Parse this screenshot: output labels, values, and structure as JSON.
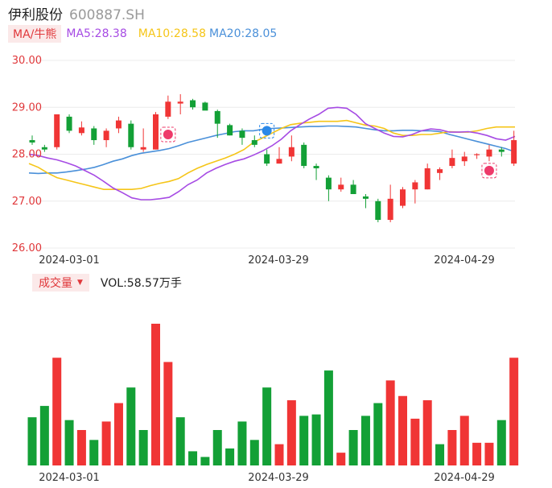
{
  "header": {
    "name": "伊利股份",
    "code": "600887.SH"
  },
  "ma_legend": {
    "button": "MA/牛熊",
    "ma5": "MA5:28.38",
    "ma10": "MA10:28.58",
    "ma20": "MA20:28.05"
  },
  "volume_legend": {
    "button": "成交量",
    "text": "VOL:58.57万手"
  },
  "colors": {
    "up": "#f03535",
    "down": "#13a036",
    "ma5": "#a64be4",
    "ma10": "#f5c518",
    "ma20": "#4a90d9",
    "axis_text": "#e0383b"
  },
  "chart_data": [
    {
      "type": "candlestick",
      "yticks": [
        "30.00",
        "29.00",
        "28.00",
        "27.00",
        "26.00"
      ],
      "ylim": [
        26.0,
        30.0
      ],
      "xticks": [
        "2024-03-01",
        "2024-03-29",
        "2024-04-29"
      ],
      "xtick_index": [
        2,
        19,
        34
      ],
      "candles": [
        {
          "o": 28.3,
          "h": 28.4,
          "l": 28.2,
          "c": 28.25
        },
        {
          "o": 28.15,
          "h": 28.2,
          "l": 28.05,
          "c": 28.1
        },
        {
          "o": 28.15,
          "h": 28.85,
          "l": 28.1,
          "c": 28.85
        },
        {
          "o": 28.8,
          "h": 28.85,
          "l": 28.45,
          "c": 28.5
        },
        {
          "o": 28.45,
          "h": 28.7,
          "l": 28.4,
          "c": 28.57
        },
        {
          "o": 28.55,
          "h": 28.6,
          "l": 28.2,
          "c": 28.3
        },
        {
          "o": 28.3,
          "h": 28.55,
          "l": 28.15,
          "c": 28.5
        },
        {
          "o": 28.55,
          "h": 28.8,
          "l": 28.45,
          "c": 28.72
        },
        {
          "o": 28.65,
          "h": 28.72,
          "l": 28.1,
          "c": 28.15
        },
        {
          "o": 28.1,
          "h": 28.55,
          "l": 28.05,
          "c": 28.15
        },
        {
          "o": 28.1,
          "h": 28.9,
          "l": 28.1,
          "c": 28.85
        },
        {
          "o": 28.8,
          "h": 29.25,
          "l": 28.75,
          "c": 29.12
        },
        {
          "o": 29.08,
          "h": 29.28,
          "l": 28.85,
          "c": 29.12
        },
        {
          "o": 29.15,
          "h": 29.18,
          "l": 28.95,
          "c": 29.0
        },
        {
          "o": 29.1,
          "h": 29.12,
          "l": 28.95,
          "c": 28.93
        },
        {
          "o": 28.92,
          "h": 28.95,
          "l": 28.35,
          "c": 28.65
        },
        {
          "o": 28.62,
          "h": 28.65,
          "l": 28.4,
          "c": 28.4
        },
        {
          "o": 28.5,
          "h": 28.55,
          "l": 28.2,
          "c": 28.35
        },
        {
          "o": 28.3,
          "h": 28.4,
          "l": 28.15,
          "c": 28.2
        },
        {
          "o": 28.0,
          "h": 28.1,
          "l": 27.75,
          "c": 27.8
        },
        {
          "o": 27.8,
          "h": 28.15,
          "l": 27.8,
          "c": 27.9
        },
        {
          "o": 27.95,
          "h": 28.4,
          "l": 27.85,
          "c": 28.15
        },
        {
          "o": 28.2,
          "h": 28.25,
          "l": 27.7,
          "c": 27.75
        },
        {
          "o": 27.75,
          "h": 27.8,
          "l": 27.45,
          "c": 27.7
        },
        {
          "o": 27.5,
          "h": 27.55,
          "l": 27.0,
          "c": 27.25
        },
        {
          "o": 27.25,
          "h": 27.5,
          "l": 27.2,
          "c": 27.35
        },
        {
          "o": 27.35,
          "h": 27.45,
          "l": 27.15,
          "c": 27.15
        },
        {
          "o": 27.1,
          "h": 27.15,
          "l": 26.85,
          "c": 27.05
        },
        {
          "o": 27.0,
          "h": 27.05,
          "l": 26.55,
          "c": 26.6
        },
        {
          "o": 26.6,
          "h": 27.35,
          "l": 26.55,
          "c": 27.05
        },
        {
          "o": 26.9,
          "h": 27.3,
          "l": 26.85,
          "c": 27.25
        },
        {
          "o": 27.25,
          "h": 27.45,
          "l": 26.95,
          "c": 27.4
        },
        {
          "o": 27.25,
          "h": 27.8,
          "l": 27.25,
          "c": 27.7
        },
        {
          "o": 27.6,
          "h": 27.72,
          "l": 27.45,
          "c": 27.68
        },
        {
          "o": 27.75,
          "h": 28.1,
          "l": 27.7,
          "c": 27.92
        },
        {
          "o": 27.85,
          "h": 28.05,
          "l": 27.75,
          "c": 27.95
        },
        {
          "o": 27.98,
          "h": 28.02,
          "l": 27.9,
          "c": 28.0
        },
        {
          "o": 27.95,
          "h": 28.2,
          "l": 27.85,
          "c": 28.1
        },
        {
          "o": 28.1,
          "h": 28.15,
          "l": 27.95,
          "c": 28.05
        },
        {
          "o": 27.8,
          "h": 28.5,
          "l": 27.75,
          "c": 28.3
        }
      ],
      "ma5": [
        28.0,
        27.97,
        27.92,
        27.88,
        27.82,
        27.75,
        27.65,
        27.55,
        27.42,
        27.28,
        27.18,
        27.07,
        27.03,
        27.03,
        27.05,
        27.08,
        27.2,
        27.35,
        27.45,
        27.6,
        27.7,
        27.78,
        27.85,
        27.9,
        27.98,
        28.07,
        28.18,
        28.32,
        28.5,
        28.63,
        28.75,
        28.85,
        28.98,
        29.0,
        28.98,
        28.85,
        28.65,
        28.55,
        28.45,
        28.38,
        28.37,
        28.42,
        28.5,
        28.54,
        28.52,
        28.47,
        28.47,
        28.48,
        28.45,
        28.4,
        28.33,
        28.3,
        28.38
      ],
      "ma10": [
        27.8,
        27.72,
        27.6,
        27.5,
        27.45,
        27.4,
        27.35,
        27.3,
        27.25,
        27.25,
        27.25,
        27.25,
        27.27,
        27.33,
        27.38,
        27.42,
        27.48,
        27.6,
        27.7,
        27.78,
        27.85,
        27.92,
        28.0,
        28.1,
        28.25,
        28.35,
        28.45,
        28.55,
        28.63,
        28.66,
        28.68,
        28.7,
        28.7,
        28.7,
        28.72,
        28.67,
        28.62,
        28.6,
        28.55,
        28.45,
        28.4,
        28.4,
        28.42,
        28.42,
        28.45,
        28.48,
        28.47,
        28.47,
        28.5,
        28.55,
        28.58,
        28.58,
        28.58
      ],
      "ma20": [
        27.6,
        27.59,
        27.6,
        27.6,
        27.62,
        27.65,
        27.68,
        27.72,
        27.78,
        27.85,
        27.9,
        27.97,
        28.02,
        28.05,
        28.08,
        28.12,
        28.18,
        28.25,
        28.3,
        28.35,
        28.4,
        28.44,
        28.48,
        28.5,
        28.5,
        28.53,
        28.55,
        28.56,
        28.57,
        28.58,
        28.59,
        28.59,
        28.6,
        28.6,
        28.59,
        28.58,
        28.55,
        28.52,
        28.5,
        28.5,
        28.51,
        28.51,
        28.5,
        28.5,
        28.48,
        28.42,
        28.37,
        28.32,
        28.27,
        28.22,
        28.17,
        28.12,
        28.05
      ]
    },
    {
      "type": "bar",
      "label": "成交量",
      "xticks": [
        "2024-03-01",
        "2024-03-29",
        "2024-04-29"
      ],
      "volumes": [
        {
          "v": 34,
          "up": false
        },
        {
          "v": 42,
          "up": false
        },
        {
          "v": 76,
          "up": true
        },
        {
          "v": 32,
          "up": false
        },
        {
          "v": 25,
          "up": true
        },
        {
          "v": 18,
          "up": false
        },
        {
          "v": 31,
          "up": true
        },
        {
          "v": 44,
          "up": true
        },
        {
          "v": 55,
          "up": false
        },
        {
          "v": 25,
          "up": false
        },
        {
          "v": 100,
          "up": true
        },
        {
          "v": 73,
          "up": true
        },
        {
          "v": 34,
          "up": false
        },
        {
          "v": 10,
          "up": false
        },
        {
          "v": 6,
          "up": false
        },
        {
          "v": 25,
          "up": false
        },
        {
          "v": 12,
          "up": false
        },
        {
          "v": 31,
          "up": false
        },
        {
          "v": 18,
          "up": false
        },
        {
          "v": 55,
          "up": false
        },
        {
          "v": 15,
          "up": true
        },
        {
          "v": 46,
          "up": true
        },
        {
          "v": 35,
          "up": false
        },
        {
          "v": 36,
          "up": false
        },
        {
          "v": 67,
          "up": false
        },
        {
          "v": 9,
          "up": true
        },
        {
          "v": 25,
          "up": false
        },
        {
          "v": 35,
          "up": false
        },
        {
          "v": 44,
          "up": false
        },
        {
          "v": 60,
          "up": true
        },
        {
          "v": 49,
          "up": true
        },
        {
          "v": 33,
          "up": true
        },
        {
          "v": 46,
          "up": true
        },
        {
          "v": 15,
          "up": false
        },
        {
          "v": 25,
          "up": true
        },
        {
          "v": 35,
          "up": true
        },
        {
          "v": 16,
          "up": true
        },
        {
          "v": 16,
          "up": true
        },
        {
          "v": 32,
          "up": false
        },
        {
          "v": 76,
          "up": true
        }
      ]
    }
  ]
}
